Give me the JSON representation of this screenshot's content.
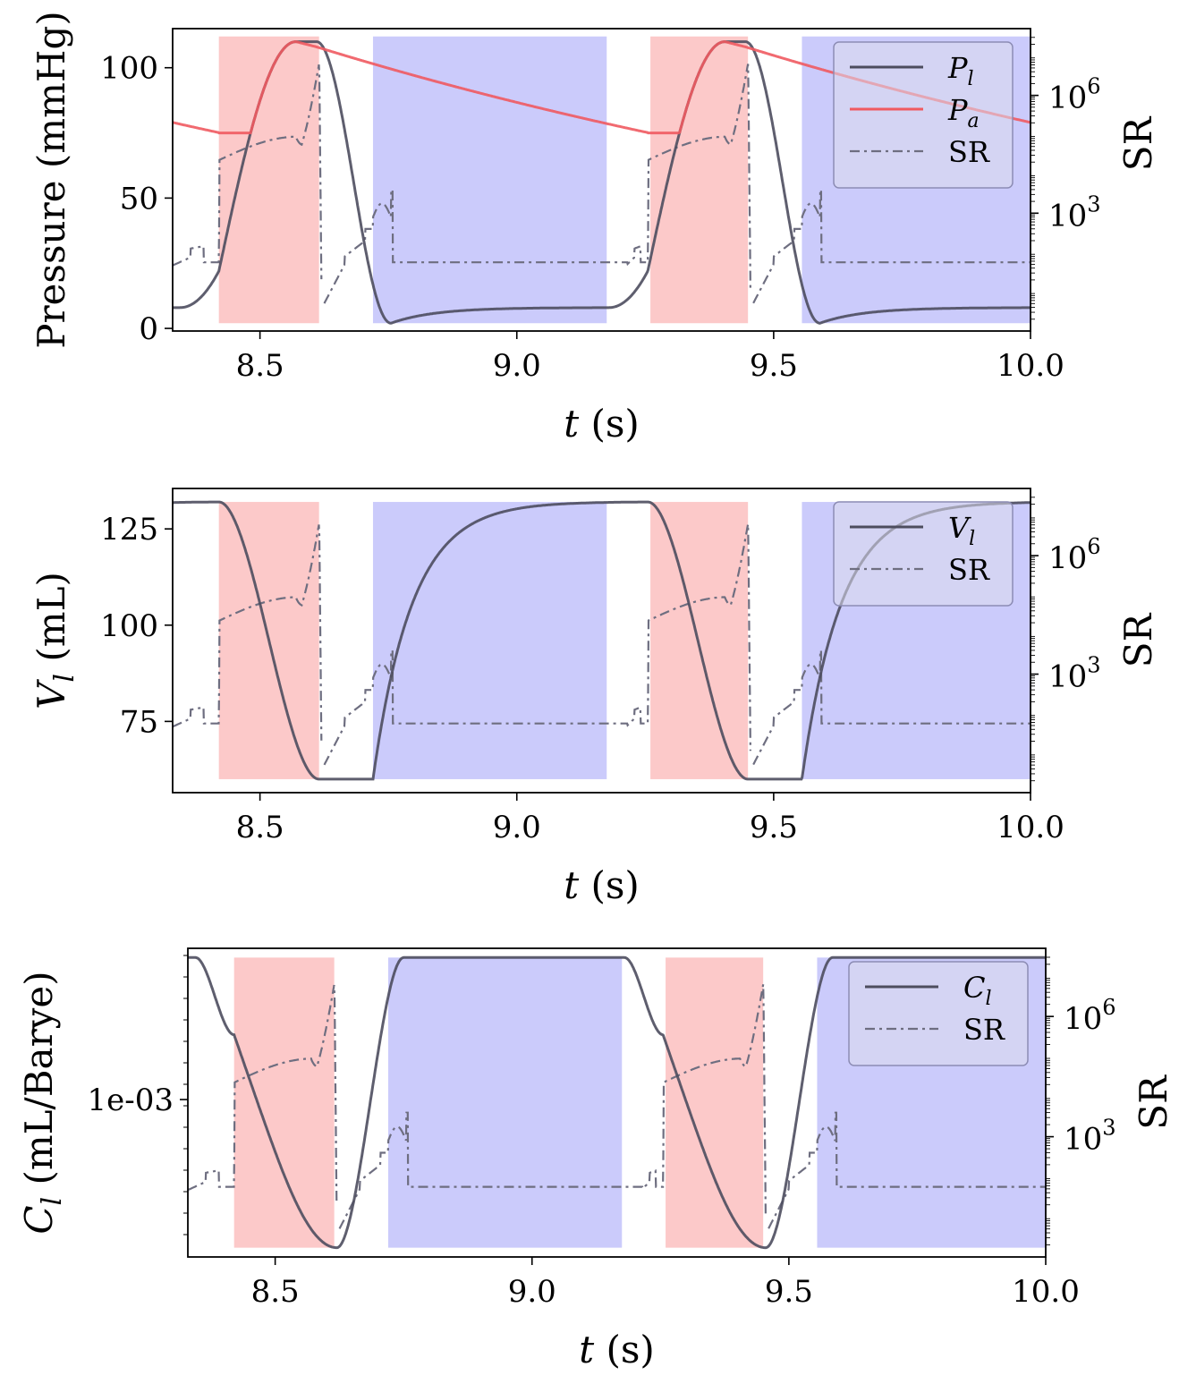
{
  "chart_data": [
    {
      "type": "line",
      "id": "pressure",
      "ylabel": "Pressure (mmHg)",
      "y2label": "SR",
      "xlabel_var": "t",
      "xlabel_unit": " (s)",
      "xlim": [
        8.33,
        10.0
      ],
      "ylim": [
        -1,
        115
      ],
      "xticks": [
        8.5,
        9.0,
        9.5,
        10.0
      ],
      "xtick_labels": [
        "8.5",
        "9.0",
        "9.5",
        "10.0"
      ],
      "yticks": [
        0,
        50,
        100
      ],
      "ytick_labels": [
        "0",
        "50",
        "100"
      ],
      "sr_log_range": [
        0,
        7.7
      ],
      "sr_ticks": [
        3,
        6
      ],
      "sr_tick_labels": [
        "10",
        "10"
      ],
      "sr_tick_exps": [
        "3",
        "6"
      ],
      "band_y": [
        2,
        112
      ],
      "red_bands": [
        [
          8.42,
          8.615
        ],
        [
          9.26,
          9.45
        ]
      ],
      "blue_bands": [
        [
          8.72,
          9.175
        ],
        [
          9.555,
          10.0
        ]
      ],
      "legend": [
        {
          "var": "P",
          "sub": "l",
          "style": "solid-dark"
        },
        {
          "var": "P",
          "sub": "a",
          "style": "solid-red"
        },
        {
          "text": "SR",
          "style": "dashdot"
        }
      ]
    },
    {
      "type": "line",
      "id": "volume",
      "ylabel_var": "V",
      "ylabel_sub": "l",
      "ylabel_unit": " (mL)",
      "y2label": "SR",
      "xlabel_var": "t",
      "xlabel_unit": " (s)",
      "xlim": [
        8.33,
        10.0
      ],
      "ylim": [
        56.5,
        135.5
      ],
      "xticks": [
        8.5,
        9.0,
        9.5,
        10.0
      ],
      "xtick_labels": [
        "8.5",
        "9.0",
        "9.5",
        "10.0"
      ],
      "yticks": [
        75,
        100,
        125
      ],
      "ytick_labels": [
        "75",
        "100",
        "125"
      ],
      "sr_log_range": [
        0,
        7.7
      ],
      "sr_ticks": [
        3,
        6
      ],
      "sr_tick_labels": [
        "10",
        "10"
      ],
      "sr_tick_exps": [
        "3",
        "6"
      ],
      "band_y": [
        60,
        132
      ],
      "red_bands": [
        [
          8.42,
          8.615
        ],
        [
          9.26,
          9.45
        ]
      ],
      "blue_bands": [
        [
          8.72,
          9.175
        ],
        [
          9.555,
          10.0
        ]
      ],
      "legend": [
        {
          "var": "V",
          "sub": "l",
          "style": "solid-dark"
        },
        {
          "text": "SR",
          "style": "dashdot"
        }
      ]
    },
    {
      "type": "line",
      "id": "compliance",
      "ylabel_var": "C",
      "ylabel_sub": "l",
      "ylabel_unit": " (mL/Barye)",
      "y2label": "SR",
      "xlabel_var": "t",
      "xlabel_unit": " (s)",
      "xlim": [
        8.33,
        10.0
      ],
      "ylim": [
        0,
        1
      ],
      "xticks": [
        8.5,
        9.0,
        9.5,
        10.0
      ],
      "xtick_labels": [
        "8.5",
        "9.0",
        "9.5",
        "10.0"
      ],
      "yticks": [
        0.51
      ],
      "ytick_labels": [
        "1e-03"
      ],
      "sr_log_range": [
        0,
        7.7
      ],
      "sr_ticks": [
        3,
        6
      ],
      "sr_tick_labels": [
        "10",
        "10"
      ],
      "sr_tick_exps": [
        "3",
        "6"
      ],
      "band_y": [
        0.03,
        0.97
      ],
      "red_bands": [
        [
          8.42,
          8.615
        ],
        [
          9.26,
          9.45
        ]
      ],
      "blue_bands": [
        [
          8.72,
          9.175
        ],
        [
          9.555,
          10.0
        ]
      ],
      "legend": [
        {
          "var": "C",
          "sub": "l",
          "style": "solid-dark"
        },
        {
          "text": "SR",
          "style": "dashdot"
        }
      ]
    }
  ],
  "colors": {
    "dark": "#4d4d5e",
    "red_line": "#f05a60",
    "sr_line": "#6e6e80",
    "red_band": "#fcc9c9",
    "blue_band": "#cbcbfb",
    "legend_border": "#8c8cb4"
  }
}
